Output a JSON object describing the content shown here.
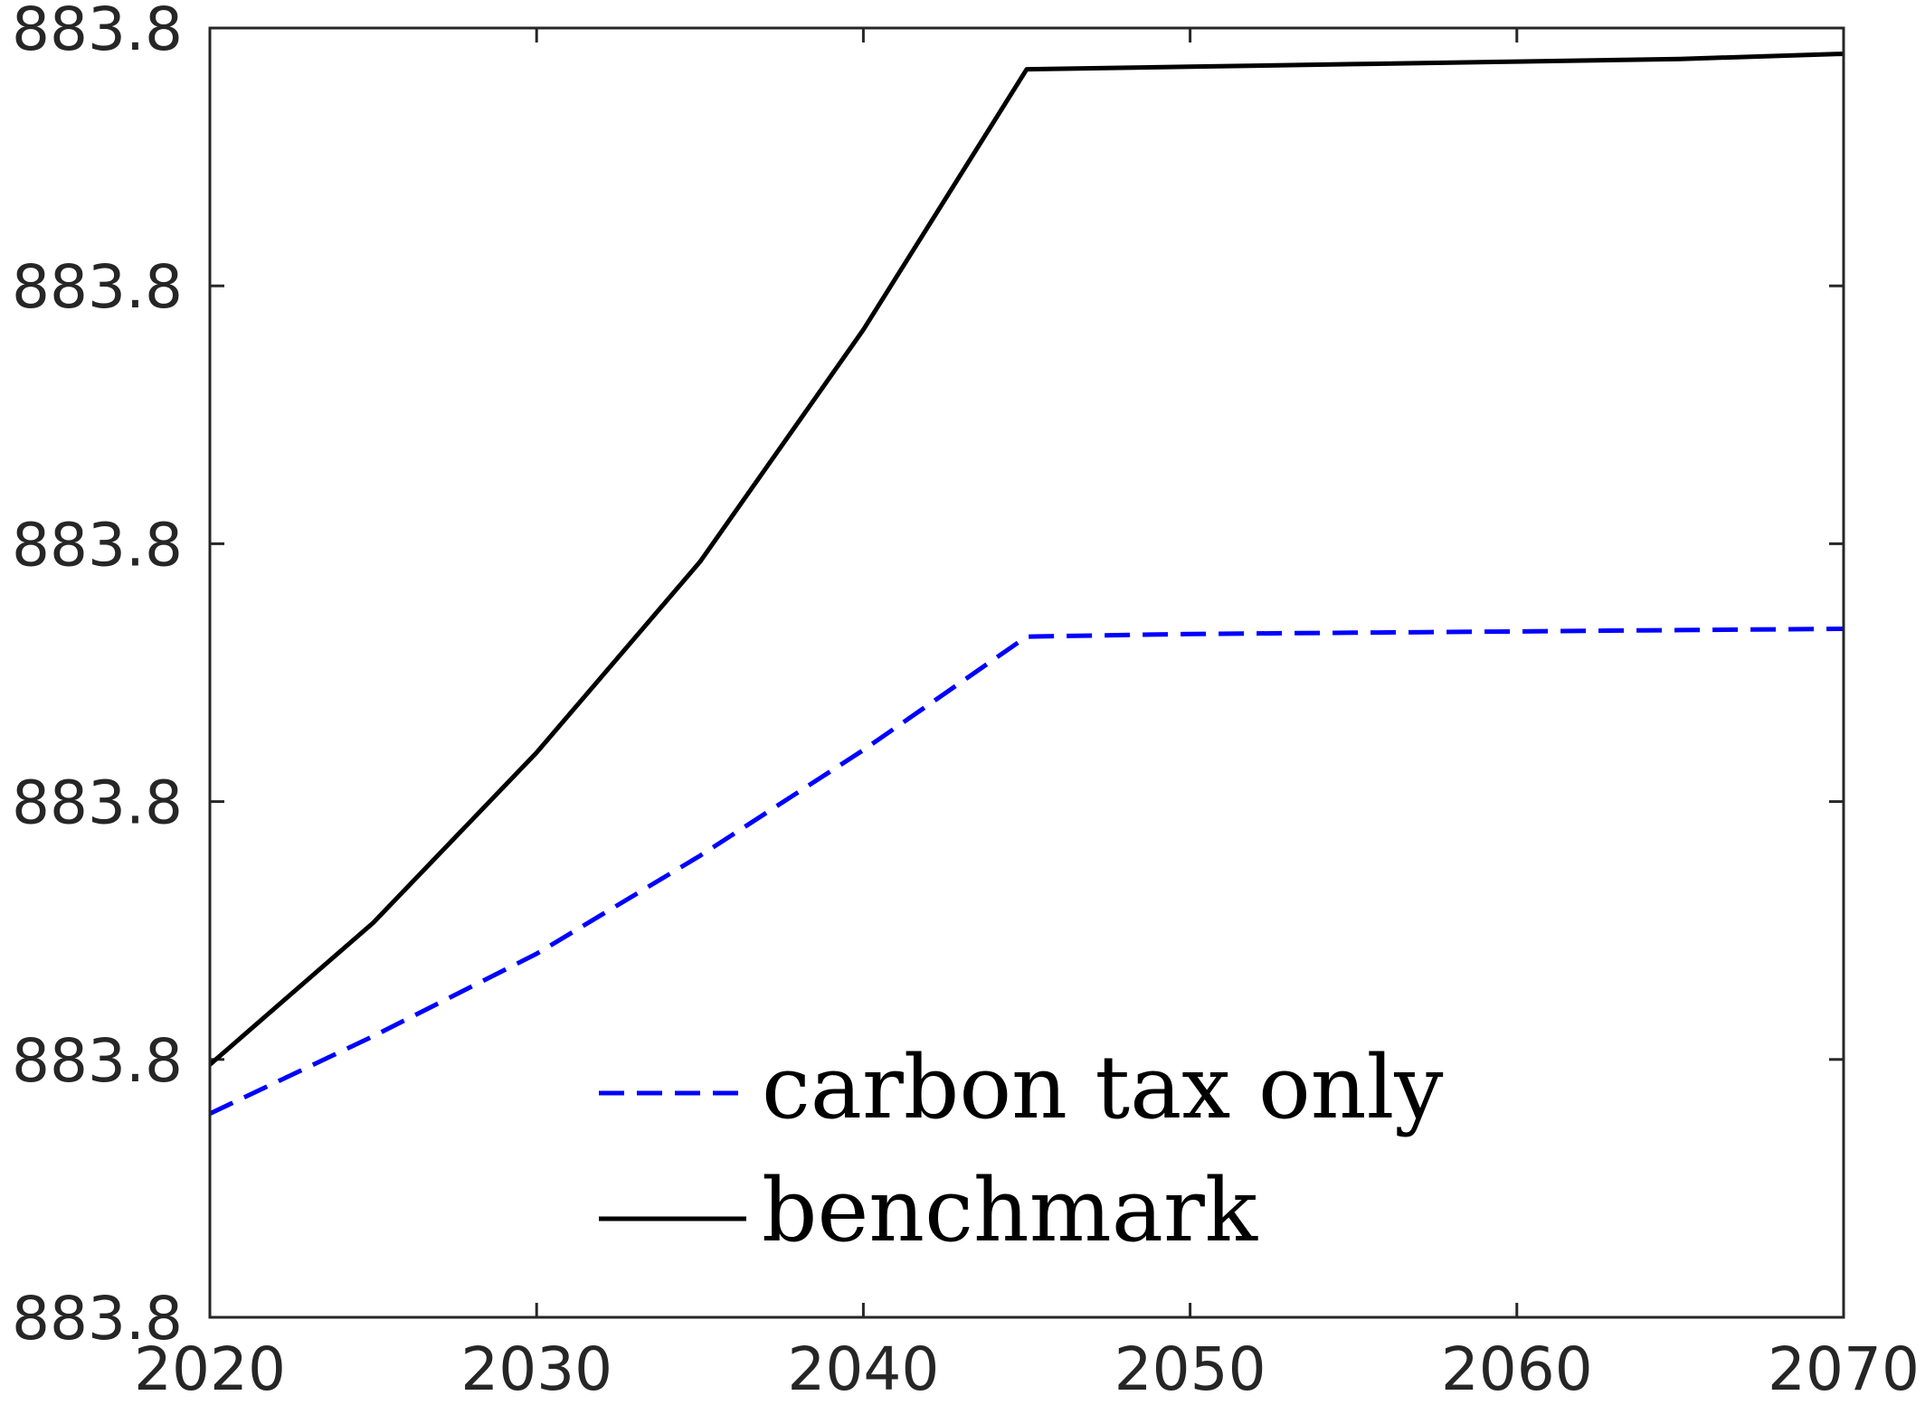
{
  "chart_data": {
    "type": "line",
    "title": "",
    "xlabel": "",
    "ylabel": "",
    "xlim": [
      2020,
      2070
    ],
    "ylim": [
      0,
      5
    ],
    "x_ticks": [
      "2020",
      "2030",
      "2040",
      "2050",
      "2060",
      "2070"
    ],
    "y_ticks": [
      "883.8",
      "883.8",
      "883.8",
      "883.8",
      "883.8",
      "883.8"
    ],
    "grid": false,
    "legend_position": "bottom-center",
    "series": [
      {
        "name": "carbon tax only",
        "color": "#0000ff",
        "style": "dashed",
        "x": [
          2020,
          2025,
          2030,
          2035,
          2040,
          2045,
          2050,
          2055,
          2060,
          2065,
          2070
        ],
        "y": [
          0.79,
          1.09,
          1.41,
          1.79,
          2.2,
          2.64,
          2.65,
          2.655,
          2.66,
          2.665,
          2.67
        ]
      },
      {
        "name": "benchmark",
        "color": "#000000",
        "style": "solid",
        "x": [
          2020,
          2025,
          2030,
          2035,
          2040,
          2045,
          2050,
          2055,
          2060,
          2065,
          2070
        ],
        "y": [
          0.98,
          1.53,
          2.19,
          2.93,
          3.83,
          4.84,
          4.85,
          4.86,
          4.87,
          4.88,
          4.9
        ]
      }
    ]
  }
}
